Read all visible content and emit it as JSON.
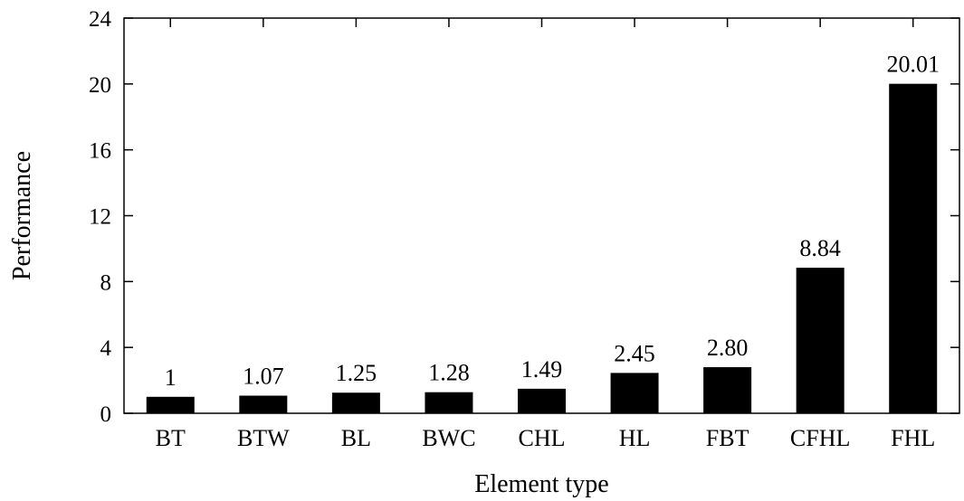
{
  "chart_data": {
    "type": "bar",
    "categories": [
      "BT",
      "BTW",
      "BL",
      "BWC",
      "CHL",
      "HL",
      "FBT",
      "CFHL",
      "FHL"
    ],
    "values": [
      1,
      1.07,
      1.25,
      1.28,
      1.49,
      2.45,
      2.8,
      8.84,
      20.01
    ],
    "value_labels": [
      "1",
      "1.07",
      "1.25",
      "1.28",
      "1.49",
      "2.45",
      "2.80",
      "8.84",
      "20.01"
    ],
    "xlabel": "Element type",
    "ylabel": "Performance",
    "ylim": [
      0,
      24
    ],
    "yticks": [
      0,
      4,
      8,
      12,
      16,
      20,
      24
    ],
    "bar_color": "#000000",
    "grid": false,
    "legend": "none"
  }
}
